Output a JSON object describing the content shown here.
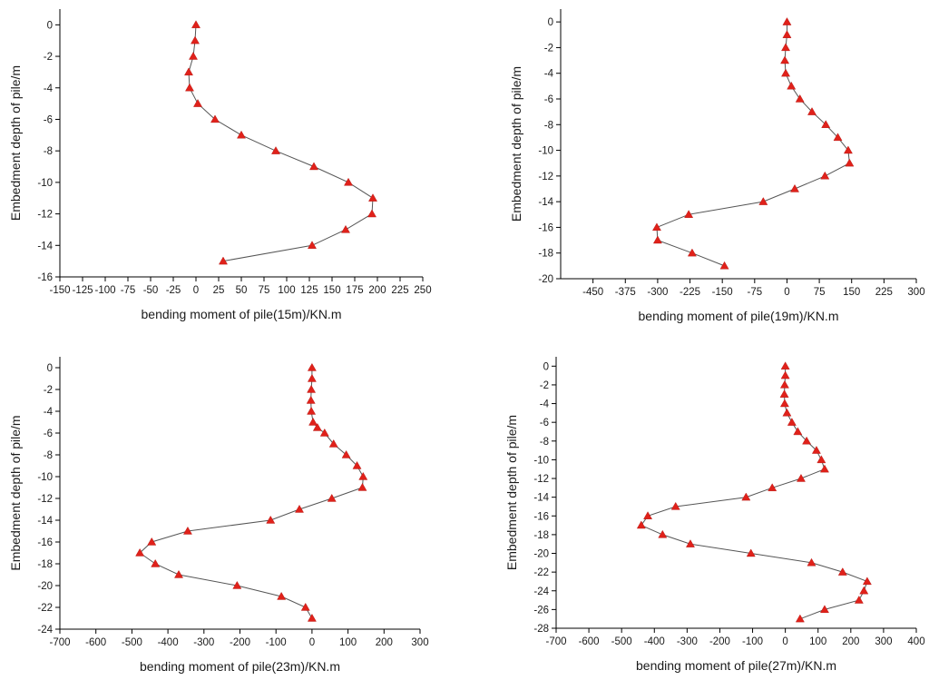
{
  "chart_data": [
    {
      "type": "line",
      "xlabel": "bending moment of pile(15m)/KN.m",
      "ylabel": "Embedment depth of pile/m",
      "xlim": [
        -150,
        250
      ],
      "ylim": [
        -16,
        1
      ],
      "xticks": [
        -150,
        -125,
        -100,
        -75,
        -50,
        -25,
        0,
        25,
        50,
        75,
        100,
        125,
        150,
        175,
        200,
        225,
        250
      ],
      "yticks": [
        0,
        -2,
        -4,
        -6,
        -8,
        -10,
        -12,
        -14,
        -16
      ],
      "grid": false,
      "series": [
        {
          "color": "#e0211a",
          "marker": "triangle",
          "x": [
            0,
            -1,
            -3,
            -8,
            -7,
            2,
            21,
            50,
            88,
            130,
            168,
            195,
            194,
            165,
            128,
            30
          ],
          "y": [
            0,
            -1,
            -2,
            -3,
            -4,
            -5,
            -6,
            -7,
            -8,
            -9,
            -10,
            -11,
            -12,
            -13,
            -14,
            -15
          ]
        }
      ]
    },
    {
      "type": "line",
      "xlabel": "bending moment of pile(19m)/KN.m",
      "ylabel": "Embedment depth of pile/m",
      "xlim": [
        -525,
        300
      ],
      "ylim": [
        -20,
        1
      ],
      "xticks": [
        -450,
        -375,
        -300,
        -225,
        -150,
        -75,
        0,
        75,
        150,
        225,
        300
      ],
      "yticks": [
        0,
        -2,
        -4,
        -6,
        -8,
        -10,
        -12,
        -14,
        -16,
        -18,
        -20
      ],
      "grid": false,
      "series": [
        {
          "color": "#e0211a",
          "marker": "triangle",
          "x": [
            0,
            0,
            -3,
            -5,
            -3,
            10,
            30,
            58,
            90,
            118,
            142,
            145,
            88,
            18,
            -55,
            -228,
            -302,
            -300,
            -220,
            -145
          ],
          "y": [
            0,
            -1,
            -2,
            -3,
            -4,
            -5,
            -6,
            -7,
            -8,
            -9,
            -10,
            -11,
            -12,
            -13,
            -14,
            -15,
            -16,
            -17,
            -18,
            -19
          ]
        }
      ]
    },
    {
      "type": "line",
      "xlabel": "bending moment of pile(23m)/KN.m",
      "ylabel": "Embedment depth of pile/m",
      "xlim": [
        -700,
        300
      ],
      "ylim": [
        -24,
        1
      ],
      "xticks": [
        -700,
        -600,
        -500,
        -400,
        -300,
        -200,
        -100,
        0,
        100,
        200,
        300
      ],
      "yticks": [
        0,
        -2,
        -4,
        -6,
        -8,
        -10,
        -12,
        -14,
        -16,
        -18,
        -20,
        -22,
        -24
      ],
      "grid": false,
      "series": [
        {
          "color": "#e0211a",
          "marker": "triangle",
          "x": [
            0,
            0,
            -2,
            -3,
            -2,
            3,
            15,
            35,
            60,
            95,
            125,
            142,
            140,
            55,
            -35,
            -115,
            -345,
            -445,
            -478,
            -435,
            -370,
            -208,
            -85,
            -18,
            0
          ],
          "y": [
            0,
            -1,
            -2,
            -3,
            -4,
            -5,
            -5.5,
            -6,
            -7,
            -8,
            -9,
            -10,
            -11,
            -12,
            -13,
            -14,
            -15,
            -16,
            -17,
            -18,
            -19,
            -20,
            -21,
            -22,
            -23
          ]
        }
      ]
    },
    {
      "type": "line",
      "xlabel": "bending moment of pile(27m)/KN.m",
      "ylabel": "Embedment depth of pile/m",
      "xlim": [
        -700,
        400
      ],
      "ylim": [
        -28,
        1
      ],
      "xticks": [
        -700,
        -600,
        -500,
        -400,
        -300,
        -200,
        -100,
        0,
        100,
        200,
        300,
        400
      ],
      "yticks": [
        0,
        -2,
        -4,
        -6,
        -8,
        -10,
        -12,
        -14,
        -16,
        -18,
        -20,
        -22,
        -24,
        -26,
        -28
      ],
      "grid": false,
      "series": [
        {
          "color": "#e0211a",
          "marker": "triangle",
          "x": [
            0,
            0,
            -2,
            -3,
            -2,
            5,
            20,
            38,
            65,
            95,
            110,
            120,
            48,
            -40,
            -120,
            -335,
            -420,
            -440,
            -375,
            -290,
            -105,
            80,
            175,
            250,
            240,
            225,
            120,
            45
          ],
          "y": [
            0,
            -1,
            -2,
            -3,
            -4,
            -5,
            -6,
            -7,
            -8,
            -9,
            -10,
            -11,
            -12,
            -13,
            -14,
            -15,
            -16,
            -17,
            -18,
            -19,
            -20,
            -21,
            -22,
            -23,
            -24,
            -25,
            -26,
            -27
          ]
        }
      ]
    }
  ]
}
